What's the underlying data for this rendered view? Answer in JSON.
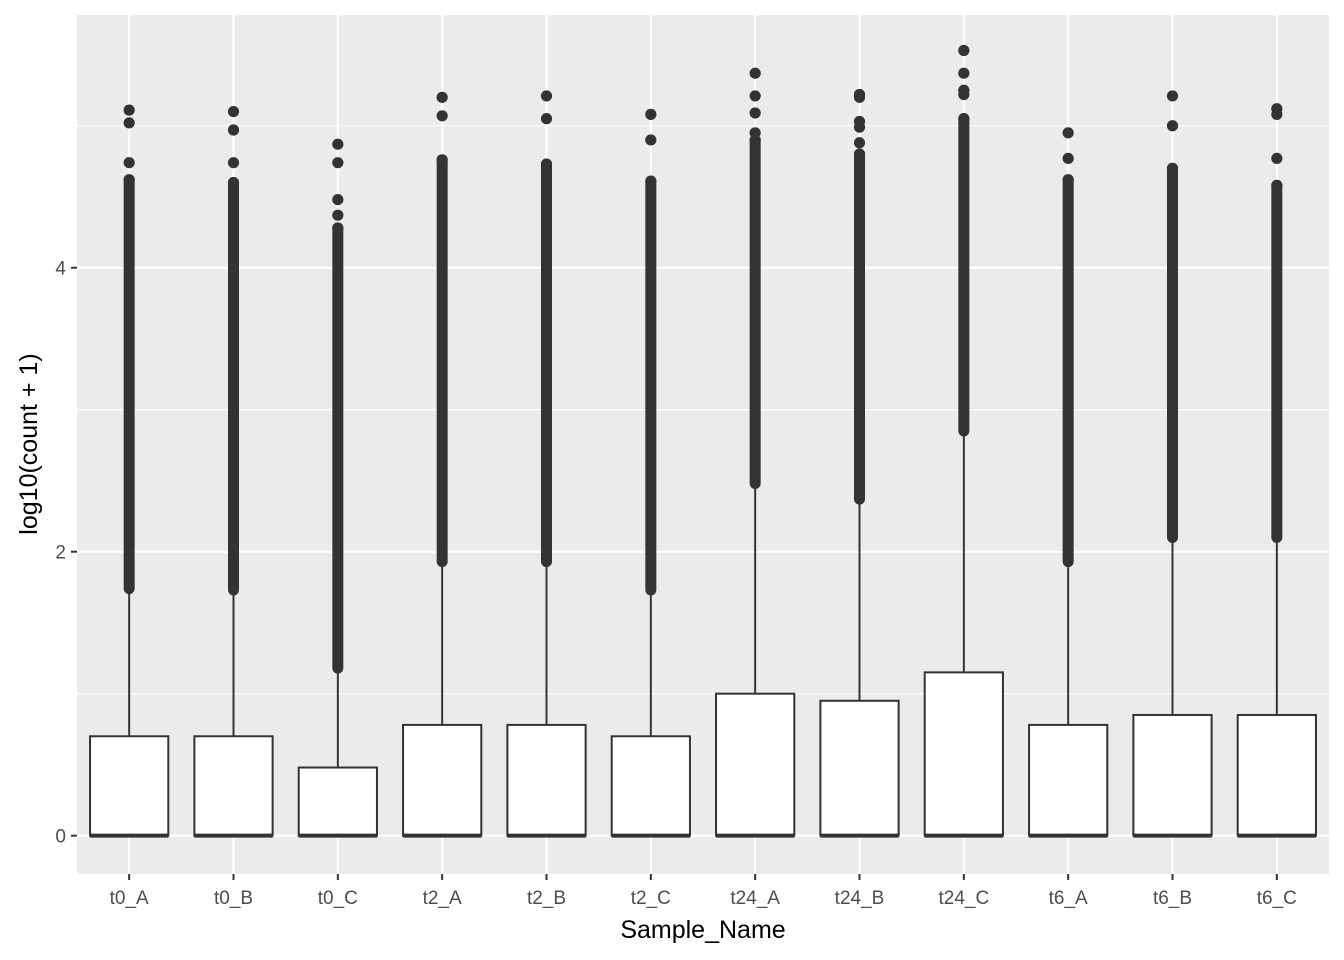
{
  "chart_data": {
    "type": "boxplot",
    "xlabel": "Sample_Name",
    "ylabel": "log10(count + 1)",
    "ylim": [
      -0.27,
      5.78
    ],
    "yticks": [
      0,
      2,
      4
    ],
    "grid": true,
    "categories": [
      "t0_A",
      "t0_B",
      "t0_C",
      "t2_A",
      "t2_B",
      "t2_C",
      "t24_A",
      "t24_B",
      "t24_C",
      "t6_A",
      "t6_B",
      "t6_C"
    ],
    "boxes": [
      {
        "name": "t0_A",
        "min": 0,
        "q1": 0,
        "median": 0,
        "q3": 0.7,
        "whisker_high": 1.74,
        "outlier_low": 1.74,
        "outliers": [
          4.62,
          4.74,
          5.02,
          5.11
        ]
      },
      {
        "name": "t0_B",
        "min": 0,
        "q1": 0,
        "median": 0,
        "q3": 0.7,
        "whisker_high": 1.73,
        "outlier_low": 1.73,
        "outliers": [
          4.6,
          4.74,
          4.97,
          5.1
        ]
      },
      {
        "name": "t0_C",
        "min": 0,
        "q1": 0,
        "median": 0,
        "q3": 0.48,
        "whisker_high": 1.18,
        "outlier_low": 1.18,
        "outliers": [
          4.28,
          4.37,
          4.48,
          4.74,
          4.87
        ]
      },
      {
        "name": "t2_A",
        "min": 0,
        "q1": 0,
        "median": 0,
        "q3": 0.78,
        "whisker_high": 1.93,
        "outlier_low": 1.93,
        "outliers": [
          4.76,
          5.07,
          5.2
        ]
      },
      {
        "name": "t2_B",
        "min": 0,
        "q1": 0,
        "median": 0,
        "q3": 0.78,
        "whisker_high": 1.93,
        "outlier_low": 1.93,
        "outliers": [
          4.73,
          5.05,
          5.21
        ]
      },
      {
        "name": "t2_C",
        "min": 0,
        "q1": 0,
        "median": 0,
        "q3": 0.7,
        "whisker_high": 1.73,
        "outlier_low": 1.73,
        "outliers": [
          4.61,
          4.9,
          5.08
        ]
      },
      {
        "name": "t24_A",
        "min": 0,
        "q1": 0,
        "median": 0,
        "q3": 1.0,
        "whisker_high": 2.48,
        "outlier_low": 2.48,
        "outliers": [
          4.9,
          4.95,
          5.09,
          5.21,
          5.37
        ]
      },
      {
        "name": "t24_B",
        "min": 0,
        "q1": 0,
        "median": 0,
        "q3": 0.95,
        "whisker_high": 2.37,
        "outlier_low": 2.37,
        "outliers": [
          4.8,
          4.88,
          4.99,
          5.03,
          5.2,
          5.22
        ]
      },
      {
        "name": "t24_C",
        "min": 0,
        "q1": 0,
        "median": 0,
        "q3": 1.15,
        "whisker_high": 2.85,
        "outlier_low": 2.85,
        "outliers": [
          5.05,
          5.22,
          5.25,
          5.37,
          5.53
        ]
      },
      {
        "name": "t6_A",
        "min": 0,
        "q1": 0,
        "median": 0,
        "q3": 0.78,
        "whisker_high": 1.93,
        "outlier_low": 1.93,
        "outliers": [
          4.62,
          4.77,
          4.95
        ]
      },
      {
        "name": "t6_B",
        "min": 0,
        "q1": 0,
        "median": 0,
        "q3": 0.85,
        "whisker_high": 2.1,
        "outlier_low": 2.1,
        "outliers": [
          4.7,
          5.0,
          5.21
        ]
      },
      {
        "name": "t6_C",
        "min": 0,
        "q1": 0,
        "median": 0,
        "q3": 0.85,
        "whisker_high": 2.1,
        "outlier_low": 2.1,
        "outliers": [
          4.58,
          4.77,
          5.08,
          5.12
        ]
      }
    ],
    "colors": {
      "panel_background": "#ebebeb",
      "grid_major": "#ffffff",
      "box_fill": "#ffffff",
      "box_stroke": "#333333",
      "outlier": "#333333"
    }
  }
}
